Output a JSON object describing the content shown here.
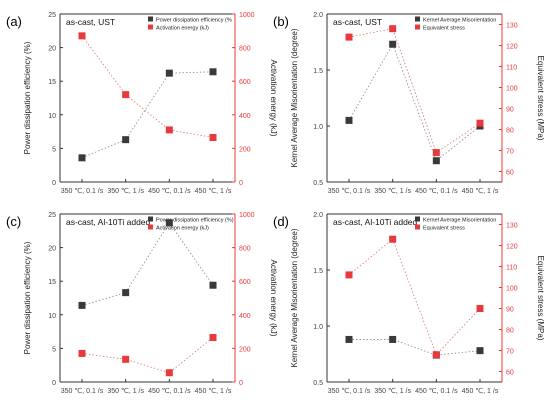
{
  "chart_data": [
    {
      "panel_label": "(a)",
      "type": "line",
      "title": "as-cast, UST",
      "categories": [
        "350 ℃, 0.1 /s",
        "350 ℃, 1 /s",
        "450 ℃, 0.1 /s",
        "450 ℃, 1 /s"
      ],
      "ylabel": "Power dissipation efficiency (%)",
      "ylim": [
        0,
        25
      ],
      "yticks": [
        "0",
        "5",
        "10",
        "15",
        "20",
        "25"
      ],
      "y2label": "Activation energy (kJ)",
      "y2lim": [
        0,
        1000
      ],
      "y2ticks": [
        "0",
        "200",
        "400",
        "600",
        "800",
        "1000"
      ],
      "y2_color": "#e8393c",
      "legend_position": "top-right",
      "series": [
        {
          "name": "Power dissipation efficiency (%",
          "axis": "left",
          "color": "#3a3a3a",
          "values": [
            3.6,
            6.3,
            16.2,
            16.4
          ]
        },
        {
          "name": "Activation energy (kJ)",
          "axis": "right",
          "color": "#e8393c",
          "values": [
            870,
            520,
            310,
            265
          ]
        }
      ]
    },
    {
      "panel_label": "(b)",
      "type": "line",
      "title": "as-cast, UST",
      "categories": [
        "350 ℃, 0.1 /s",
        "350 ℃, 1 /s",
        "450 ℃, 0.1 /s",
        "450 ℃, 1 /s"
      ],
      "ylabel": "Kernel Average Misorientation (degree)",
      "ylim": [
        0.5,
        2.0
      ],
      "yticks": [
        "0.5",
        "1.0",
        "1.5",
        "2.0"
      ],
      "y2label": "Equivalent stress (MPa)",
      "y2lim": [
        55,
        135
      ],
      "y2ticks": [
        "60",
        "70",
        "80",
        "90",
        "100",
        "110",
        "120",
        "130"
      ],
      "y2_color": "#e8393c",
      "legend_position": "top-right",
      "series": [
        {
          "name": "Kernel Average Misorientation",
          "axis": "left",
          "color": "#3a3a3a",
          "values": [
            1.05,
            1.73,
            0.69,
            1.0
          ]
        },
        {
          "name": "Equivalent stress",
          "axis": "right",
          "color": "#e8393c",
          "values": [
            124,
            128,
            69,
            83
          ]
        }
      ]
    },
    {
      "panel_label": "(c)",
      "type": "line",
      "title": "as-cast, Al-10Ti added",
      "categories": [
        "350 ℃, 0.1 /s",
        "350 ℃, 1 /s",
        "450 ℃, 0.1 /s",
        "450 ℃, 1 /s"
      ],
      "ylabel": "Power dissipation efficiency (%)",
      "ylim": [
        0,
        25
      ],
      "yticks": [
        "0",
        "5",
        "10",
        "15",
        "20",
        "25"
      ],
      "y2label": "Activation energy (kJ)",
      "y2lim": [
        0,
        1000
      ],
      "y2ticks": [
        "0",
        "200",
        "400",
        "600",
        "800",
        "1000"
      ],
      "y2_color": "#e8393c",
      "legend_position": "top-right",
      "series": [
        {
          "name": "Power dissipation efficiency (%)",
          "axis": "left",
          "color": "#3a3a3a",
          "values": [
            11.4,
            13.3,
            23.7,
            14.4
          ]
        },
        {
          "name": "Activation energy (kJ)",
          "axis": "right",
          "color": "#e8393c",
          "values": [
            170,
            135,
            55,
            265
          ]
        }
      ]
    },
    {
      "panel_label": "(d)",
      "type": "line",
      "title": "as-cast, Al-10Ti added",
      "categories": [
        "350 ℃, 0.1 /s",
        "350 ℃, 1 /s",
        "450 ℃, 0.1 /s",
        "450 ℃, 1 /s"
      ],
      "ylabel": "Kernel Average Misorientation (degree)",
      "ylim": [
        0.5,
        2.0
      ],
      "yticks": [
        "0.5",
        "1.0",
        "1.5",
        "2.0"
      ],
      "y2label": "Equivalent stress (MPa)",
      "y2lim": [
        55,
        135
      ],
      "y2ticks": [
        "60",
        "70",
        "80",
        "90",
        "100",
        "110",
        "120",
        "130"
      ],
      "y2_color": "#e8393c",
      "legend_position": "top-right",
      "series": [
        {
          "name": "Kernel Average Misorientation",
          "axis": "left",
          "color": "#3a3a3a",
          "values": [
            0.88,
            0.88,
            0.74,
            0.78
          ]
        },
        {
          "name": "Equivalent stress",
          "axis": "right",
          "color": "#e8393c",
          "values": [
            106,
            123,
            68,
            90
          ]
        }
      ]
    }
  ]
}
